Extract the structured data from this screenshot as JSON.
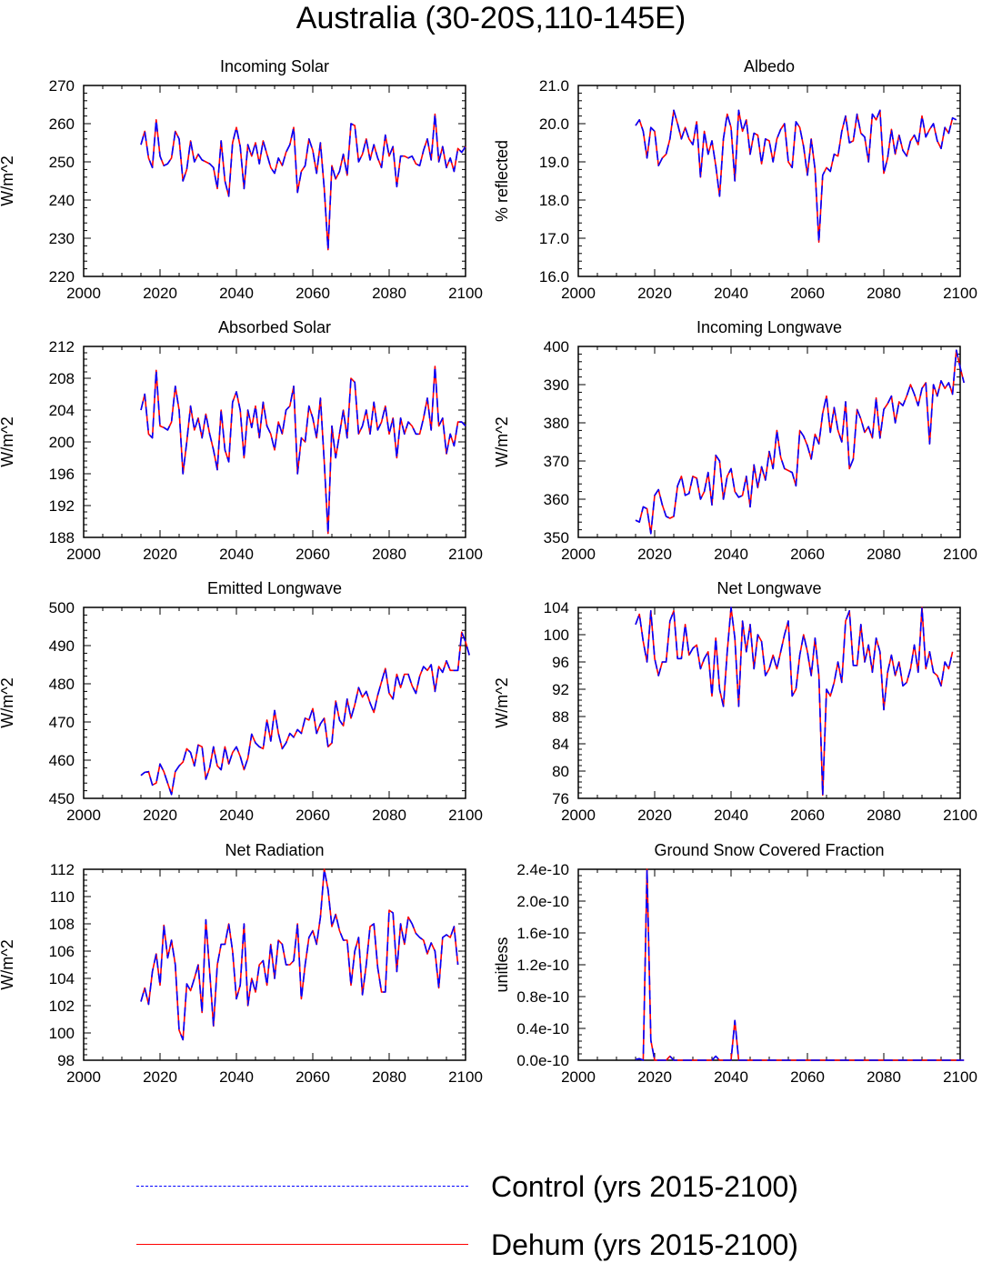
{
  "title": "Australia (30-20S,110-145E)",
  "colors": {
    "control": "#0000ff",
    "dehum": "#ff0000",
    "axis": "#000000"
  },
  "legend": [
    {
      "label": "Control (yrs 2015-2100)",
      "color": "#0000ff",
      "style": "dashed"
    },
    {
      "label": "Dehum (yrs 2015-2100)",
      "color": "#ff0000",
      "style": "solid"
    }
  ],
  "chart_data": [
    {
      "type": "line",
      "title": "Incoming Solar",
      "ylabel": "W/m^2",
      "xlim": [
        2000,
        2100
      ],
      "ylim": [
        220,
        270
      ],
      "xticks": [
        2000,
        2020,
        2040,
        2060,
        2080,
        2100
      ],
      "yticks": [
        220,
        230,
        240,
        250,
        260,
        270
      ],
      "ytick_labels": [
        "220",
        "230",
        "240",
        "250",
        "260",
        "270"
      ],
      "series": [
        {
          "name": "Control (yrs 2015-2100)",
          "x_start": 2015,
          "values": [
            254.5,
            258,
            251,
            248.5,
            261,
            251.5,
            249,
            249.5,
            251,
            258,
            256,
            245,
            248,
            255.5,
            250,
            252,
            250.5,
            250,
            249.5,
            248.5,
            243,
            255.5,
            245,
            241,
            255,
            259,
            254,
            243,
            254.5,
            251.5,
            255,
            249.5,
            255.5,
            252,
            248.5,
            247,
            251,
            249,
            252.5,
            254.5,
            259,
            242,
            247.5,
            249,
            256,
            253,
            247,
            255,
            243,
            227,
            249,
            245.5,
            247.5,
            252,
            246.5,
            260,
            259.5,
            250,
            252,
            256,
            250.5,
            254.5,
            251,
            248.5,
            257,
            251.5,
            254,
            243.5,
            251.5,
            251.5,
            251,
            251.5,
            249.5,
            249,
            253,
            256,
            250.5,
            262.5,
            250,
            254,
            248.5,
            251,
            247.5,
            253.5,
            252.5,
            254
          ]
        }
      ]
    },
    {
      "type": "line",
      "title": "Albedo",
      "ylabel": "% reflected",
      "xlim": [
        2000,
        2100
      ],
      "ylim": [
        16,
        21
      ],
      "xticks": [
        2000,
        2020,
        2040,
        2060,
        2080,
        2100
      ],
      "yticks": [
        16,
        17,
        18,
        19,
        20,
        21
      ],
      "ytick_labels": [
        "16.0",
        "17.0",
        "18.0",
        "19.0",
        "20.0",
        "21.0"
      ],
      "series": [
        {
          "name": "Control (yrs 2015-2100)",
          "x_start": 2015,
          "values": [
            19.95,
            20.1,
            19.8,
            19.1,
            19.9,
            19.8,
            18.9,
            19.1,
            19.2,
            19.6,
            20.35,
            20.0,
            19.6,
            19.9,
            19.6,
            19.45,
            20.05,
            18.6,
            19.8,
            19.2,
            19.55,
            18.9,
            18.1,
            19.6,
            20.25,
            19.9,
            18.5,
            20.35,
            19.8,
            20.1,
            19.2,
            19.75,
            19.7,
            18.95,
            19.6,
            19.55,
            19.0,
            19.6,
            19.85,
            20.0,
            19.0,
            18.85,
            20.05,
            19.9,
            19.4,
            18.65,
            19.6,
            18.8,
            16.9,
            18.65,
            18.85,
            18.75,
            19.2,
            19.15,
            19.8,
            20.2,
            19.5,
            19.55,
            20.25,
            19.75,
            19.65,
            19.0,
            20.25,
            20.1,
            20.35,
            18.7,
            19.1,
            19.85,
            19.2,
            19.7,
            19.3,
            19.15,
            19.55,
            19.7,
            19.45,
            20.2,
            19.65,
            19.85,
            20.0,
            19.55,
            19.35,
            19.9,
            19.75,
            20.15,
            20.1
          ]
        }
      ]
    },
    {
      "type": "line",
      "title": "Absorbed Solar",
      "ylabel": "W/m^2",
      "xlim": [
        2000,
        2100
      ],
      "ylim": [
        188,
        212
      ],
      "xticks": [
        2000,
        2020,
        2040,
        2060,
        2080,
        2100
      ],
      "yticks": [
        188,
        192,
        196,
        200,
        204,
        208,
        212
      ],
      "ytick_labels": [
        "188",
        "192",
        "196",
        "200",
        "204",
        "208",
        "212"
      ],
      "series": [
        {
          "name": "Control (yrs 2015-2100)",
          "x_start": 2015,
          "values": [
            204,
            206,
            201,
            200.5,
            209,
            202,
            201.8,
            201.5,
            202.5,
            207,
            204,
            196,
            200,
            204.5,
            201.5,
            203,
            200.5,
            203.5,
            201,
            199,
            196.5,
            204,
            199,
            197.5,
            205,
            206.3,
            204,
            198,
            204,
            201.8,
            204.5,
            200.5,
            205,
            202,
            201,
            199,
            202.5,
            201,
            204,
            204.5,
            207,
            196,
            200.5,
            200,
            204.5,
            203,
            200.5,
            205.5,
            197.5,
            188.5,
            202,
            198,
            201,
            204,
            200.5,
            208,
            207.5,
            201,
            202,
            204,
            201,
            205,
            201.5,
            202.5,
            204.5,
            201,
            203,
            198,
            203,
            201,
            202.5,
            202,
            201,
            201,
            203,
            205.5,
            201.5,
            209.5,
            202,
            203,
            198.5,
            201,
            199.5,
            202.5,
            202.5,
            202
          ]
        }
      ]
    },
    {
      "type": "line",
      "title": "Incoming Longwave",
      "ylabel": "W/m^2",
      "xlim": [
        2000,
        2100
      ],
      "ylim": [
        350,
        400
      ],
      "xticks": [
        2000,
        2020,
        2040,
        2060,
        2080,
        2100
      ],
      "yticks": [
        350,
        360,
        370,
        380,
        390,
        400
      ],
      "ytick_labels": [
        "350",
        "360",
        "370",
        "380",
        "390",
        "400"
      ],
      "series": [
        {
          "name": "Control (yrs 2015-2100)",
          "x_start": 2015,
          "values": [
            354.5,
            354,
            358,
            357.5,
            351,
            361,
            362.5,
            358.5,
            355.5,
            355,
            355.5,
            363.5,
            366,
            361,
            361.5,
            366,
            365.5,
            360,
            362,
            367,
            358.5,
            371.5,
            370,
            360,
            366,
            368,
            362,
            360.5,
            361,
            366,
            358,
            369,
            363,
            368.5,
            365,
            372.5,
            368,
            378,
            371,
            368,
            367.5,
            367,
            363.5,
            378,
            376.5,
            374,
            370.5,
            377,
            374.5,
            382.5,
            387,
            377.5,
            384,
            378,
            375,
            385.5,
            368,
            370.5,
            383.5,
            381,
            377.5,
            379,
            376,
            386.5,
            376,
            383.5,
            385,
            387,
            380,
            385.5,
            384.5,
            387,
            390,
            387.5,
            384.5,
            389,
            390.5,
            374.5,
            390,
            387,
            391,
            389,
            390.5,
            387.5,
            399,
            394.5,
            390.5
          ]
        }
      ]
    },
    {
      "type": "line",
      "title": "Emitted Longwave",
      "ylabel": "W/m^2",
      "xlim": [
        2000,
        2100
      ],
      "ylim": [
        450,
        500
      ],
      "xticks": [
        2000,
        2020,
        2040,
        2060,
        2080,
        2100
      ],
      "yticks": [
        450,
        460,
        470,
        480,
        490,
        500
      ],
      "ytick_labels": [
        "450",
        "460",
        "470",
        "480",
        "490",
        "500"
      ],
      "series": [
        {
          "name": "Control (yrs 2015-2100)",
          "x_start": 2015,
          "values": [
            456,
            456.8,
            457,
            453.5,
            454,
            459,
            457,
            454,
            451,
            457,
            458.5,
            459.5,
            463,
            462,
            458.5,
            464,
            463.5,
            455,
            458,
            463.5,
            458.5,
            457.5,
            463.5,
            459,
            462,
            463.5,
            461,
            457.5,
            460.5,
            466.8,
            464.5,
            463.5,
            463,
            470.5,
            465,
            473,
            467,
            463,
            464.5,
            467,
            466,
            468,
            467,
            471,
            470.5,
            473.5,
            467,
            469.5,
            471,
            463.5,
            464.5,
            475.5,
            470.5,
            469,
            476,
            471,
            474.5,
            479,
            476.5,
            478,
            475,
            472.5,
            477,
            480.5,
            484,
            477.5,
            476,
            482.5,
            479,
            482.5,
            482.5,
            479.5,
            477.5,
            482,
            484.5,
            483.5,
            485,
            478,
            484.5,
            483,
            486,
            483.5,
            483.5,
            483.5,
            493.5,
            491,
            487.5
          ]
        }
      ]
    },
    {
      "type": "line",
      "title": "Net Longwave",
      "ylabel": "W/m^2",
      "xlim": [
        2000,
        2100
      ],
      "ylim": [
        76,
        104
      ],
      "xticks": [
        2000,
        2020,
        2040,
        2060,
        2080,
        2100
      ],
      "yticks": [
        76,
        80,
        84,
        88,
        92,
        96,
        100,
        104
      ],
      "ytick_labels": [
        "76",
        "80",
        "84",
        "88",
        "92",
        "96",
        "100",
        "104"
      ],
      "series": [
        {
          "name": "Control (yrs 2015-2100)",
          "x_start": 2015,
          "values": [
            101.5,
            103,
            99,
            96,
            103.5,
            96.5,
            94,
            96,
            96,
            102,
            103.5,
            96.5,
            96.5,
            101.5,
            97,
            98,
            98.5,
            95,
            96.5,
            97.5,
            91,
            99.5,
            92,
            89.5,
            97.5,
            104,
            99.5,
            89.5,
            102,
            97.5,
            101.5,
            95,
            100,
            99,
            94,
            95,
            97,
            95,
            97.5,
            100,
            102,
            91,
            92,
            97,
            100,
            97.5,
            94,
            99.5,
            94,
            76.5,
            92,
            91,
            93,
            96,
            93,
            102,
            103.5,
            95.5,
            95.5,
            101.5,
            96,
            98.5,
            94.5,
            99.5,
            97.5,
            89,
            94.5,
            97,
            94,
            96,
            92.5,
            93,
            95,
            98.5,
            94.5,
            104,
            95,
            97.5,
            94.5,
            94,
            92.5,
            96,
            95,
            97.5
          ]
        }
      ]
    },
    {
      "type": "line",
      "title": "Net Radiation",
      "ylabel": "W/m^2",
      "xlim": [
        2000,
        2100
      ],
      "ylim": [
        98,
        112
      ],
      "xticks": [
        2000,
        2020,
        2040,
        2060,
        2080,
        2100
      ],
      "yticks": [
        98,
        100,
        102,
        104,
        106,
        108,
        110,
        112
      ],
      "ytick_labels": [
        "98",
        "100",
        "102",
        "104",
        "106",
        "108",
        "110",
        "112"
      ],
      "series": [
        {
          "name": "Control (yrs 2015-2100)",
          "x_start": 2015,
          "values": [
            102.3,
            103.3,
            102.1,
            104.5,
            105.8,
            103.5,
            107.9,
            105.5,
            106.8,
            105,
            100.2,
            99.5,
            103.6,
            103.1,
            104,
            105,
            101.5,
            108.3,
            104.5,
            100.5,
            105,
            106.5,
            106.5,
            108,
            106,
            102.5,
            103.5,
            108,
            102,
            104,
            103,
            105,
            105.3,
            103.5,
            106.5,
            104,
            106.8,
            106.5,
            105,
            105,
            105.3,
            108,
            102.5,
            105,
            107,
            107.5,
            106.5,
            108.5,
            112,
            110.5,
            107.8,
            108.7,
            107.5,
            106.8,
            106.8,
            103.5,
            106,
            107,
            102.8,
            105,
            107.8,
            108,
            104.8,
            103,
            103,
            109,
            108.8,
            104.5,
            108,
            106.5,
            108.5,
            108,
            107.3,
            107,
            106.8,
            105.8,
            106.6,
            106,
            103.3,
            107,
            107.2,
            107,
            107.8,
            105
          ]
        }
      ]
    },
    {
      "type": "line",
      "title": "Ground Snow Covered Fraction",
      "ylabel": "unitless",
      "xlim": [
        2000,
        2100
      ],
      "ylim": [
        0,
        2.4e-10
      ],
      "xticks": [
        2000,
        2020,
        2040,
        2060,
        2080,
        2100
      ],
      "yticks": [
        0,
        4e-11,
        8e-11,
        1.2e-10,
        1.6e-10,
        2e-10,
        2.4e-10
      ],
      "ytick_labels": [
        "0.0e-10",
        "0.4e-10",
        "0.8e-10",
        "1.2e-10",
        "1.6e-10",
        "2.0e-10",
        "2.4e-10"
      ],
      "series": [
        {
          "name": "Control (yrs 2015-2100)",
          "x_start": 2015,
          "values": [
            1e-12,
            2e-12,
            0,
            2.4e-10,
            2.5e-11,
            0,
            0,
            0,
            0,
            5e-12,
            0,
            0,
            0,
            0,
            0,
            0,
            0,
            0,
            0,
            0,
            0,
            5e-12,
            0,
            0,
            0,
            0,
            5e-11,
            0,
            0,
            0,
            0,
            0,
            0,
            0,
            0,
            0,
            0,
            0,
            0,
            0,
            0,
            0,
            0,
            0,
            0,
            0,
            0,
            0,
            0,
            0,
            0,
            0,
            0,
            0,
            0,
            0,
            0,
            0,
            0,
            0,
            0,
            0,
            0,
            0,
            0,
            0,
            0,
            0,
            0,
            0,
            0,
            0,
            0,
            0,
            0,
            0,
            0,
            0,
            0,
            0,
            0,
            0,
            0,
            0,
            0,
            0,
            0
          ]
        }
      ]
    }
  ]
}
